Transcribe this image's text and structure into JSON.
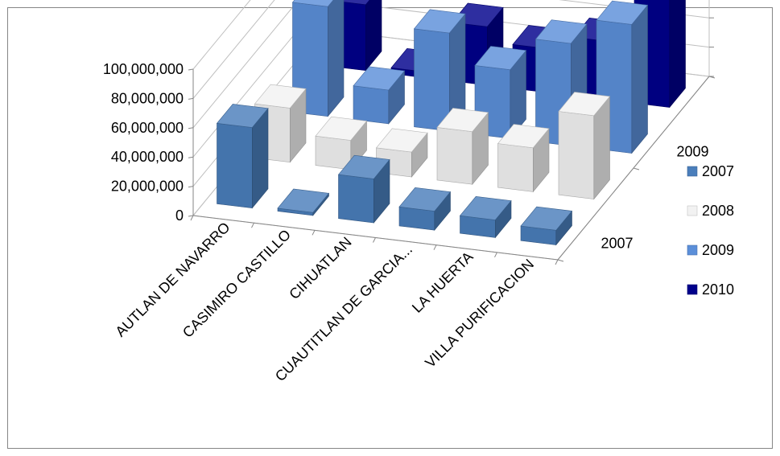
{
  "chart_data": {
    "type": "bar",
    "subtype": "3d-clustered-column",
    "title": "",
    "categories": [
      "AUTLAN DE NAVARRO",
      "CASIMIRO CASTILLO",
      "CIHUATLAN",
      "CUAUTITLAN DE GARCIA...",
      "LA HUERTA",
      "VILLA PURIFICACION"
    ],
    "series": [
      {
        "name": "2007",
        "color": "#4a7ebb",
        "values": [
          55000000,
          2000000,
          30000000,
          13000000,
          12000000,
          10000000
        ]
      },
      {
        "name": "2008",
        "color": "#f2f2f2",
        "values": [
          37000000,
          20000000,
          17000000,
          36000000,
          30000000,
          57000000
        ]
      },
      {
        "name": "2009",
        "color": "#5b8fd9",
        "values": [
          75000000,
          23000000,
          67000000,
          47000000,
          70000000,
          88000000
        ]
      },
      {
        "name": "2010",
        "color": "#00008b",
        "values": [
          45000000,
          4000000,
          40000000,
          30000000,
          40000000,
          100000000
        ]
      }
    ],
    "y_ticks": [
      "0",
      "20,000,000",
      "40,000,000",
      "60,000,000",
      "80,000,000",
      "100,000,000"
    ],
    "depth_labels": [
      "2007",
      "2009"
    ],
    "ylim": [
      0,
      100000000
    ],
    "grid": true,
    "legend": "right"
  }
}
